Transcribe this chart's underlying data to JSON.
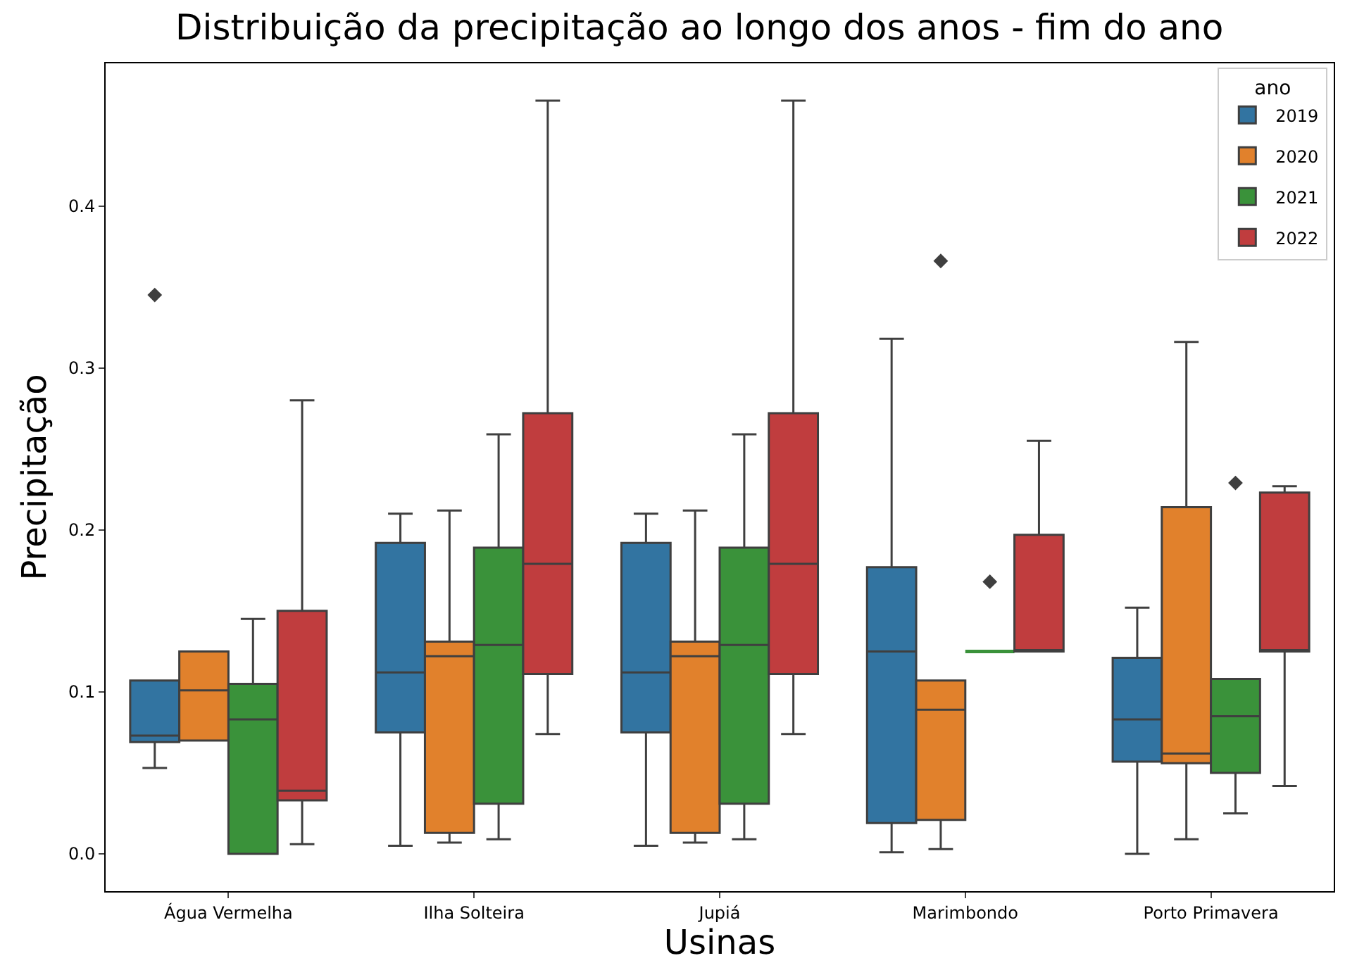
{
  "chart_data": {
    "type": "box",
    "title": "Distribuição da precipitação ao longo dos anos - fim do ano",
    "xlabel": "Usinas",
    "ylabel": "Precipitação",
    "legend_title": "ano",
    "legend": "top right",
    "marker": "diamond",
    "categories": [
      "Água Vermelha",
      "Ilha Solteira",
      "Jupiá",
      "Marimbondo",
      "Porto Primavera"
    ],
    "ylim": [
      -0.023,
      0.488
    ],
    "yticks": [
      {
        "value": 0,
        "label": "0.0"
      },
      0.1,
      0.2,
      0.3,
      0.4
    ],
    "series": [
      {
        "name": "2019",
        "color": "#3274a1",
        "boxes": [
          {
            "low": 0.053,
            "q1": 0.069,
            "median": 0.073,
            "q3": 0.107,
            "high": 0.107,
            "outliers": [
              0.345
            ]
          },
          {
            "low": 0.005,
            "q1": 0.075,
            "median": 0.112,
            "q3": 0.192,
            "high": 0.21
          },
          {
            "low": 0.005,
            "q1": 0.075,
            "median": 0.112,
            "q3": 0.192,
            "high": 0.21
          },
          {
            "low": 0.001,
            "q1": 0.019,
            "median": 0.125,
            "q3": 0.177,
            "high": 0.318
          },
          {
            "low": 0,
            "q1": 0.057,
            "median": 0.083,
            "q3": 0.121,
            "high": 0.152
          }
        ]
      },
      {
        "name": "2020",
        "color": "#e1812c",
        "boxes": [
          {
            "low": 0.07,
            "q1": 0.07,
            "median": 0.101,
            "q3": 0.125,
            "high": 0.125
          },
          {
            "low": 0.007,
            "q1": 0.013,
            "median": 0.122,
            "q3": 0.131,
            "high": 0.212
          },
          {
            "low": 0.007,
            "q1": 0.013,
            "median": 0.122,
            "q3": 0.131,
            "high": 0.212
          },
          {
            "low": 0.003,
            "q1": 0.021,
            "median": 0.089,
            "q3": 0.107,
            "high": 0.107,
            "outliers": [
              0.366
            ]
          },
          {
            "low": 0.009,
            "q1": 0.056,
            "median": 0.062,
            "q3": 0.214,
            "high": 0.316
          }
        ]
      },
      {
        "name": "2021",
        "color": "#3a923a",
        "boxes": [
          {
            "low": 0,
            "q1": 0,
            "median": 0.083,
            "q3": 0.105,
            "high": 0.145
          },
          {
            "low": 0.009,
            "q1": 0.031,
            "median": 0.129,
            "q3": 0.189,
            "high": 0.259
          },
          {
            "low": 0.009,
            "q1": 0.031,
            "median": 0.129,
            "q3": 0.189,
            "high": 0.259
          },
          {
            "low": 0.125,
            "q1": 0.125,
            "median": 0.125,
            "q3": 0.125,
            "high": 0.125,
            "outliers": [
              0.168
            ]
          },
          {
            "low": 0.025,
            "q1": 0.05,
            "median": 0.085,
            "q3": 0.108,
            "high": 0.108,
            "outliers": [
              0.229
            ]
          }
        ]
      },
      {
        "name": "2022",
        "color": "#c03d3e",
        "boxes": [
          {
            "low": 0.006,
            "q1": 0.033,
            "median": 0.039,
            "q3": 0.15,
            "high": 0.28
          },
          {
            "low": 0.074,
            "q1": 0.111,
            "median": 0.179,
            "q3": 0.272,
            "high": 0.465
          },
          {
            "low": 0.074,
            "q1": 0.111,
            "median": 0.179,
            "q3": 0.272,
            "high": 0.465
          },
          {
            "low": 0.125,
            "q1": 0.125,
            "median": 0.125,
            "q3": 0.197,
            "high": 0.255
          },
          {
            "low": 0.042,
            "q1": 0.125,
            "median": 0.125,
            "q3": 0.223,
            "high": 0.227
          }
        ]
      }
    ]
  }
}
